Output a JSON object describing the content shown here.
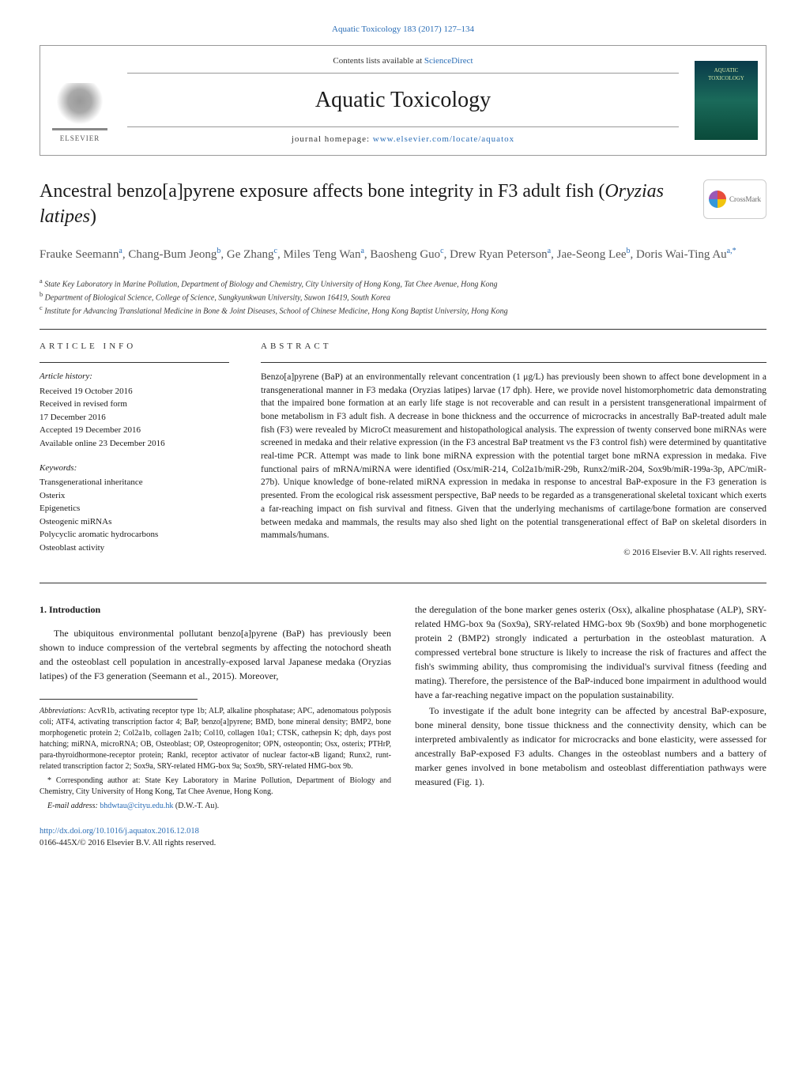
{
  "header": {
    "citation": "Aquatic Toxicology 183 (2017) 127–134",
    "contents_prefix": "Contents lists available at ",
    "contents_link": "ScienceDirect",
    "journal_name": "Aquatic Toxicology",
    "homepage_prefix": "journal homepage: ",
    "homepage_url": "www.elsevier.com/locate/aquatox",
    "publisher": "ELSEVIER",
    "cover_line1": "AQUATIC",
    "cover_line2": "TOXICOLOGY",
    "crossmark": "CrossMark"
  },
  "article": {
    "title_plain": "Ancestral benzo[a]pyrene exposure affects bone integrity in F3 adult fish (",
    "title_italic": "Oryzias latipes",
    "title_end": ")",
    "authors_html": "Frauke Seemann<sup>a</sup>, Chang-Bum Jeong<sup>b</sup>, Ge Zhang<sup>c</sup>, Miles Teng Wan<sup>a</sup>, Baosheng Guo<sup>c</sup>, Drew Ryan Peterson<sup>a</sup>, Jae-Seong Lee<sup>b</sup>, Doris Wai-Ting Au<sup>a,*</sup>",
    "affiliations": {
      "a": "State Key Laboratory in Marine Pollution, Department of Biology and Chemistry, City University of Hong Kong, Tat Chee Avenue, Hong Kong",
      "b": "Department of Biological Science, College of Science, Sungkyunkwan University, Suwon 16419, South Korea",
      "c": "Institute for Advancing Translational Medicine in Bone & Joint Diseases, School of Chinese Medicine, Hong Kong Baptist University, Hong Kong"
    }
  },
  "info": {
    "label": "article info",
    "history_heading": "Article history:",
    "history": [
      "Received 19 October 2016",
      "Received in revised form",
      "17 December 2016",
      "Accepted 19 December 2016",
      "Available online 23 December 2016"
    ],
    "keywords_heading": "Keywords:",
    "keywords": [
      "Transgenerational inheritance",
      "Osterix",
      "Epigenetics",
      "Osteogenic miRNAs",
      "Polycyclic aromatic hydrocarbons",
      "Osteoblast activity"
    ]
  },
  "abstract": {
    "label": "abstract",
    "text": "Benzo[a]pyrene (BaP) at an environmentally relevant concentration (1 μg/L) has previously been shown to affect bone development in a transgenerational manner in F3 medaka (Oryzias latipes) larvae (17 dph). Here, we provide novel histomorphometric data demonstrating that the impaired bone formation at an early life stage is not recoverable and can result in a persistent transgenerational impairment of bone metabolism in F3 adult fish. A decrease in bone thickness and the occurrence of microcracks in ancestrally BaP-treated adult male fish (F3) were revealed by MicroCt measurement and histopathological analysis. The expression of twenty conserved bone miRNAs were screened in medaka and their relative expression (in the F3 ancestral BaP treatment vs the F3 control fish) were determined by quantitative real-time PCR. Attempt was made to link bone miRNA expression with the potential target bone mRNA expression in medaka. Five functional pairs of mRNA/miRNA were identified (Osx/miR-214, Col2a1b/miR-29b, Runx2/miR-204, Sox9b/miR-199a-3p, APC/miR-27b). Unique knowledge of bone-related miRNA expression in medaka in response to ancestral BaP-exposure in the F3 generation is presented. From the ecological risk assessment perspective, BaP needs to be regarded as a transgenerational skeletal toxicant which exerts a far-reaching impact on fish survival and fitness. Given that the underlying mechanisms of cartilage/bone formation are conserved between medaka and mammals, the results may also shed light on the potential transgenerational effect of BaP on skeletal disorders in mammals/humans.",
    "copyright": "© 2016 Elsevier B.V. All rights reserved."
  },
  "body": {
    "intro_heading": "1. Introduction",
    "left_para": "The ubiquitous environmental pollutant benzo[a]pyrene (BaP) has previously been shown to induce compression of the vertebral segments by affecting the notochord sheath and the osteoblast cell population in ancestrally-exposed larval Japanese medaka (Oryzias latipes) of the F3 generation (Seemann et al., 2015). Moreover,",
    "right_para1": "the deregulation of the bone marker genes osterix (Osx), alkaline phosphatase (ALP), SRY-related HMG-box 9a (Sox9a), SRY-related HMG-box 9b (Sox9b) and bone morphogenetic protein 2 (BMP2) strongly indicated a perturbation in the osteoblast maturation. A compressed vertebral bone structure is likely to increase the risk of fractures and affect the fish's swimming ability, thus compromising the individual's survival fitness (feeding and mating). Therefore, the persistence of the BaP-induced bone impairment in adulthood would have a far-reaching negative impact on the population sustainability.",
    "right_para2": "To investigate if the adult bone integrity can be affected by ancestral BaP-exposure, bone mineral density, bone tissue thickness and the connectivity density, which can be interpreted ambivalently as indicator for microcracks and bone elasticity, were assessed for ancestrally BaP-exposed F3 adults. Changes in the osteoblast numbers and a battery of marker genes involved in bone metabolism and osteoblast differentiation pathways were measured (Fig. 1)."
  },
  "footnotes": {
    "abbrev_label": "Abbreviations:",
    "abbrev_text": " AcvR1b, activating receptor type 1b; ALP, alkaline phosphatase; APC, adenomatous polyposis coli; ATF4, activating transcription factor 4; BaP, benzo[a]pyrene; BMD, bone mineral density; BMP2, bone morphogenetic protein 2; Col2a1b, collagen 2a1b; Col10, collagen 10a1; CTSK, cathepsin K; dph, days post hatching; miRNA, microRNA; OB, Osteoblast; OP, Osteoprogenitor; OPN, osteopontin; Osx, osterix; PTHrP, para-thyroidhormone-receptor protein; Rankl, receptor activator of nuclear factor-κB ligand; Runx2, runt-related transcription factor 2; Sox9a, SRY-related HMG-box 9a; Sox9b, SRY-related HMG-box 9b.",
    "corr_label": "* Corresponding author at:",
    "corr_text": " State Key Laboratory in Marine Pollution, Department of Biology and Chemistry, City University of Hong Kong, Tat Chee Avenue, Hong Kong.",
    "email_label": "E-mail address: ",
    "email": "bhdwtau@cityu.edu.hk",
    "email_suffix": " (D.W.-T. Au)."
  },
  "doi": {
    "url": "http://dx.doi.org/10.1016/j.aquatox.2016.12.018",
    "issn_line": "0166-445X/© 2016 Elsevier B.V. All rights reserved."
  },
  "colors": {
    "link": "#2a6db6",
    "text": "#1a1a1a",
    "muted": "#555555",
    "border": "#999999"
  }
}
